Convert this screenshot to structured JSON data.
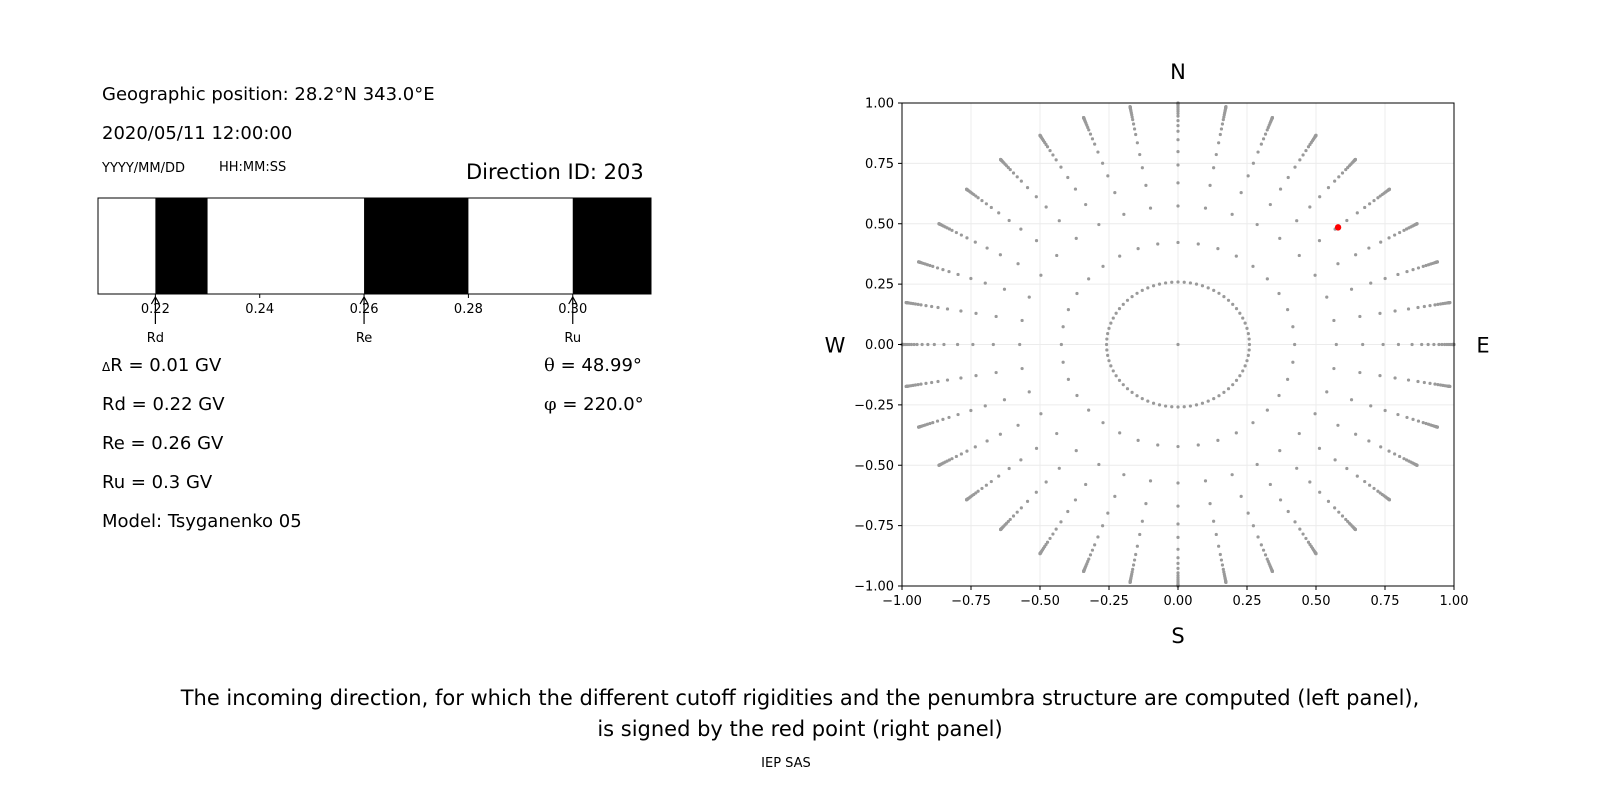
{
  "left_panel": {
    "position_line": "Geographic position: 28.2°N 343.0°E",
    "datetime_line": "2020/05/11 12:00:00",
    "date_format": "YYYY/MM/DD",
    "time_format": "HH:MM:SS",
    "direction_id": "Direction ID: 203",
    "delta_r_symbol": "Δ",
    "delta_r_text": "R = 0.01 GV",
    "rd_text": "Rd = 0.22 GV",
    "re_text": "Re = 0.26 GV",
    "ru_text": "Ru = 0.3 GV",
    "model_text": "Model: Tsyganenko 05",
    "theta_symbol": "θ",
    "theta_text": " = 48.99°",
    "phi_symbol": "φ",
    "phi_text": " = 220.0°"
  },
  "caption": {
    "line1": "The incoming direction, for which the different cutoff rigidities and the penumbra structure are computed (left panel),",
    "line2": "is signed by the red point (right panel)"
  },
  "footer": "IEP SAS",
  "chart_data": [
    {
      "type": "bar",
      "name": "penumbra-structure",
      "xlim": [
        0.209,
        0.315
      ],
      "ticks": [
        0.22,
        0.24,
        0.26,
        0.28,
        0.3
      ],
      "tick_labels": [
        "0.22",
        "0.24",
        "0.26",
        "0.28",
        "0.30"
      ],
      "forbidden_intervals": [
        [
          0.22,
          0.23
        ],
        [
          0.26,
          0.28
        ],
        [
          0.3,
          0.315
        ]
      ],
      "markers": [
        {
          "label": "Rd",
          "value": 0.22
        },
        {
          "label": "Re",
          "value": 0.26
        },
        {
          "label": "Ru",
          "value": 0.3
        }
      ],
      "colors": {
        "forbidden": "#000000",
        "allowed": "#ffffff"
      }
    },
    {
      "type": "scatter",
      "name": "direction-grid",
      "xlim": [
        -1.0,
        1.0
      ],
      "ylim": [
        -1.0,
        1.0
      ],
      "ticks": [
        -1.0,
        -0.75,
        -0.5,
        -0.25,
        0.0,
        0.25,
        0.5,
        0.75,
        1.0
      ],
      "tick_labels": [
        "−1.00",
        "−0.75",
        "−0.50",
        "−0.25",
        "0.00",
        "0.25",
        "0.50",
        "0.75",
        "1.00"
      ],
      "grid": true,
      "compass": {
        "top": "N",
        "bottom": "S",
        "left": "W",
        "right": "E"
      },
      "grid_generator": {
        "azimuths_deg": [
          0,
          10,
          20,
          30,
          40,
          50,
          60,
          70,
          80,
          90,
          100,
          110,
          120,
          130,
          140,
          150,
          160,
          170,
          180,
          190,
          200,
          210,
          220,
          230,
          240,
          250,
          260,
          270,
          280,
          290,
          300,
          310,
          320,
          330,
          340,
          350
        ],
        "zeniths_deg": [
          0,
          15,
          25,
          35,
          42,
          48,
          53,
          58,
          62,
          65,
          68,
          71,
          73,
          75,
          77,
          79,
          81,
          83,
          84,
          85,
          86,
          87,
          88,
          89,
          90
        ],
        "inner_ring_zenith_deg": 15,
        "inner_ring_azimuth_step_deg": 5,
        "radius_mapping": "sin(zenith)"
      },
      "highlight_point": {
        "x": 0.58,
        "y": 0.485
      },
      "colors": {
        "points": "#9a9a9a",
        "highlight": "#ff0000",
        "grid": "#ececec"
      }
    }
  ]
}
